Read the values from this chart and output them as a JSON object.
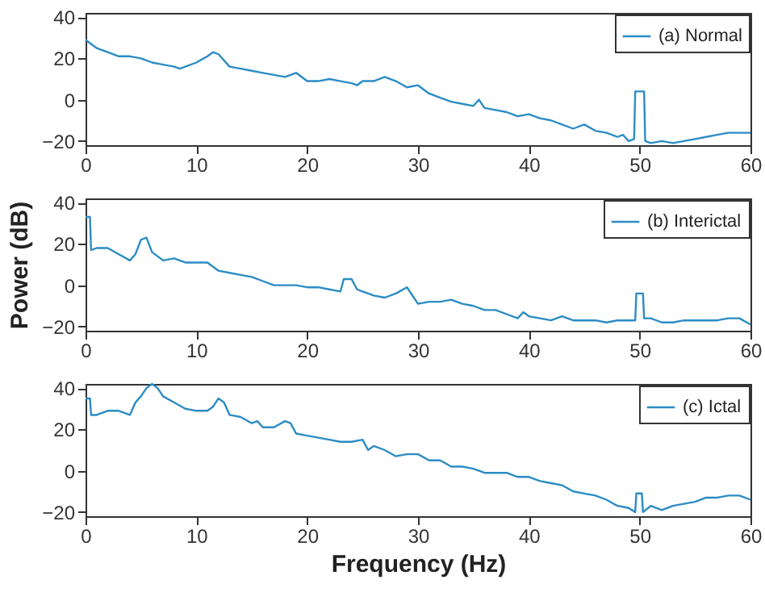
{
  "chart_data": [
    {
      "type": "line",
      "xlim": [
        0,
        60
      ],
      "xticks": [
        0,
        10,
        20,
        30,
        40,
        50,
        60
      ],
      "ylim": [
        -22,
        42
      ],
      "yticks": [
        -20,
        0,
        20,
        40
      ],
      "legend": "top right",
      "grid": false,
      "x": [
        0,
        0.5,
        1,
        2,
        3,
        4,
        5,
        6,
        7,
        8,
        8.5,
        9,
        10,
        11,
        11.5,
        12,
        13,
        14,
        15,
        16,
        17,
        18,
        19,
        20,
        21,
        22,
        23,
        24,
        24.5,
        25,
        26,
        27,
        28,
        29,
        30,
        31,
        32,
        33,
        34,
        35,
        35.5,
        36,
        37,
        38,
        39,
        40,
        41,
        42,
        43,
        44,
        45,
        46,
        47,
        48,
        48.5,
        49,
        49.5,
        49.6,
        50.4,
        50.5,
        51,
        52,
        53,
        54,
        55,
        56,
        57,
        58,
        59,
        60
      ],
      "series": [
        {
          "name": "(a) Normal",
          "color": "#2b8cc4",
          "values": [
            29,
            27,
            25,
            23,
            21,
            21,
            20,
            18,
            17,
            16,
            15,
            16,
            18,
            21,
            23,
            22,
            16,
            15,
            14,
            13,
            12,
            11,
            13,
            9,
            9,
            10,
            9,
            8,
            7,
            9,
            9,
            11,
            9,
            6,
            7,
            3,
            1,
            -1,
            -2,
            -3,
            0,
            -4,
            -5,
            -6,
            -8,
            -7,
            -9,
            -10,
            -12,
            -14,
            -12,
            -15,
            -16,
            -18,
            -17,
            -20,
            -19,
            4,
            4,
            -20,
            -21,
            -20,
            -21,
            -20,
            -19,
            -18,
            -17,
            -16,
            -16,
            -16
          ]
        }
      ]
    },
    {
      "type": "line",
      "xlim": [
        0,
        60
      ],
      "xticks": [
        0,
        10,
        20,
        30,
        40,
        50,
        60
      ],
      "ylim": [
        -22,
        42
      ],
      "yticks": [
        -20,
        0,
        20,
        40
      ],
      "legend": "top right",
      "grid": false,
      "ylabel": "Power (dB)",
      "x": [
        0,
        0.4,
        0.5,
        1,
        2,
        3,
        4,
        4.5,
        5,
        5.5,
        6,
        7,
        8,
        9,
        10,
        11,
        12,
        13,
        14,
        15,
        16,
        17,
        18,
        19,
        20,
        21,
        22,
        23,
        23.3,
        24,
        24.5,
        25,
        26,
        27,
        28,
        29,
        30,
        31,
        32,
        33,
        34,
        35,
        36,
        37,
        38,
        39,
        39.5,
        40,
        41,
        42,
        43,
        44,
        45,
        46,
        47,
        48,
        49,
        49.6,
        49.7,
        50.3,
        50.4,
        51,
        52,
        53,
        54,
        55,
        56,
        57,
        58,
        59,
        60
      ],
      "series": [
        {
          "name": "(b) Interictal",
          "color": "#2b8cc4",
          "values": [
            33,
            33,
            17,
            18,
            18,
            15,
            12,
            15,
            22,
            23,
            16,
            12,
            13,
            11,
            11,
            11,
            7,
            6,
            5,
            4,
            2,
            0,
            0,
            0,
            -1,
            -1,
            -2,
            -3,
            3,
            3,
            -2,
            -3,
            -5,
            -6,
            -4,
            -1,
            -9,
            -8,
            -8,
            -7,
            -9,
            -10,
            -12,
            -12,
            -14,
            -16,
            -13,
            -15,
            -16,
            -17,
            -15,
            -17,
            -17,
            -17,
            -18,
            -17,
            -17,
            -17,
            -4,
            -4,
            -16,
            -16,
            -18,
            -18,
            -17,
            -17,
            -17,
            -17,
            -16,
            -16,
            -19
          ]
        }
      ]
    },
    {
      "type": "line",
      "xlim": [
        0,
        60
      ],
      "xticks": [
        0,
        10,
        20,
        30,
        40,
        50,
        60
      ],
      "ylim": [
        -22,
        42
      ],
      "yticks": [
        -20,
        0,
        20,
        40
      ],
      "legend": "top right",
      "grid": false,
      "xlabel": "Frequency (Hz)",
      "x": [
        0,
        0.4,
        0.5,
        1,
        2,
        3,
        4,
        4.5,
        5,
        5.5,
        6,
        6.5,
        7,
        8,
        9,
        10,
        11,
        11.5,
        12,
        12.5,
        13,
        14,
        15,
        15.5,
        16,
        17,
        18,
        18.5,
        19,
        20,
        21,
        22,
        23,
        24,
        25,
        25.5,
        26,
        27,
        28,
        29,
        30,
        31,
        32,
        33,
        34,
        35,
        36,
        37,
        38,
        39,
        40,
        41,
        42,
        43,
        44,
        45,
        46,
        47,
        48,
        49,
        49.6,
        49.7,
        50.2,
        50.3,
        51,
        52,
        53,
        54,
        55,
        56,
        57,
        58,
        59,
        60
      ],
      "series": [
        {
          "name": "(c) Ictal",
          "color": "#2b8cc4",
          "values": [
            35,
            35,
            27,
            27,
            29,
            29,
            27,
            33,
            36,
            40,
            42,
            40,
            36,
            33,
            30,
            29,
            29,
            31,
            35,
            33,
            27,
            26,
            23,
            24,
            21,
            21,
            24,
            23,
            18,
            17,
            16,
            15,
            14,
            14,
            15,
            10,
            12,
            10,
            7,
            8,
            8,
            5,
            5,
            2,
            2,
            1,
            -1,
            -1,
            -1,
            -3,
            -3,
            -5,
            -6,
            -7,
            -10,
            -11,
            -12,
            -14,
            -17,
            -18,
            -20,
            -11,
            -11,
            -20,
            -17,
            -19,
            -17,
            -16,
            -15,
            -13,
            -13,
            -12,
            -12,
            -14
          ]
        }
      ]
    }
  ]
}
